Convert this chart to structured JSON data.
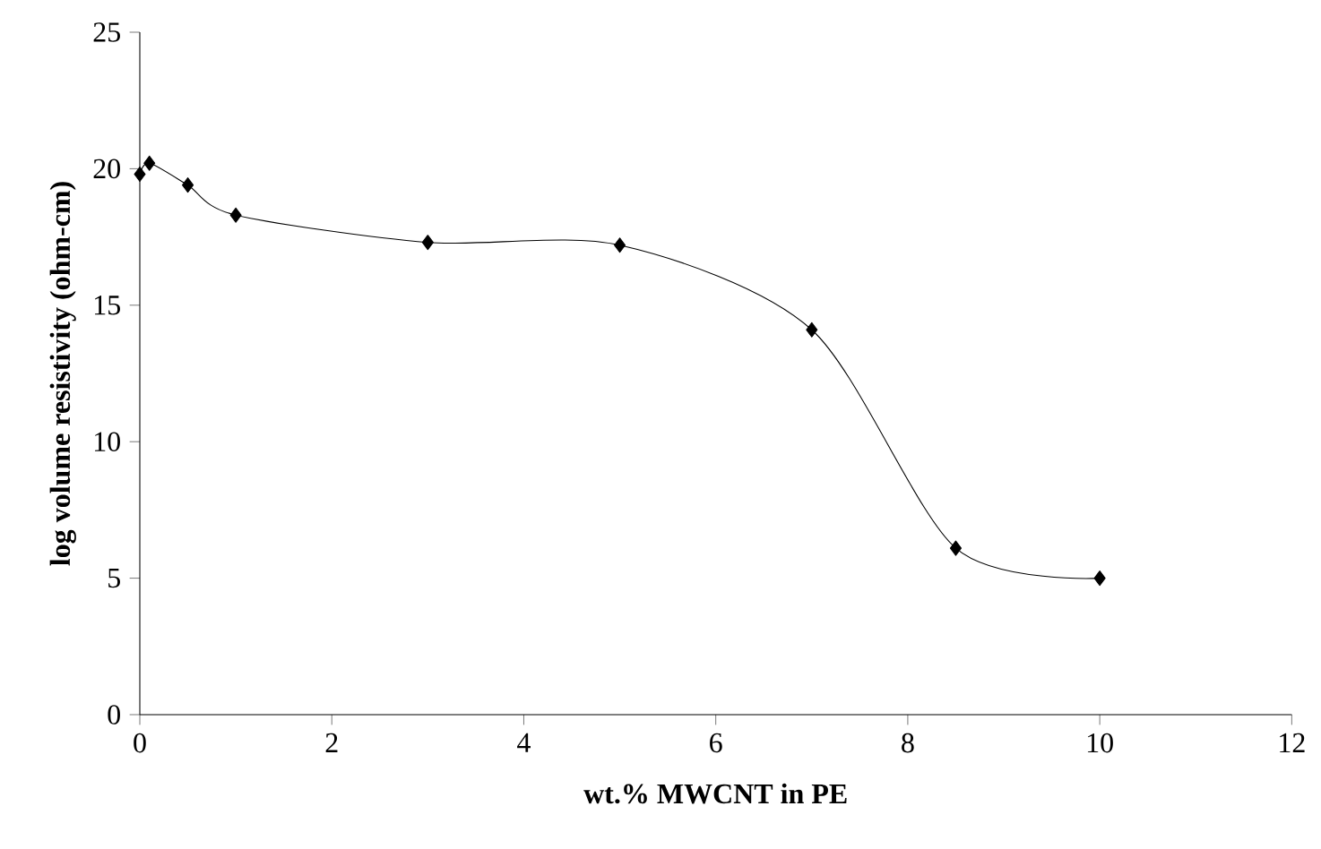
{
  "chart_data": {
    "type": "line",
    "xlabel": "wt.% MWCNT in PE",
    "ylabel": "log volume resistivity (ohm-cm)",
    "x": [
      0,
      0.1,
      0.5,
      1,
      3,
      5,
      7,
      8.5,
      10
    ],
    "series": [
      {
        "color": "#000000",
        "values": [
          19.8,
          20.2,
          19.4,
          18.3,
          17.3,
          17.2,
          14.1,
          6.1,
          5.0
        ]
      }
    ],
    "xlim": [
      0,
      12
    ],
    "xticks": [
      0,
      2,
      4,
      6,
      8,
      10,
      12
    ],
    "ylim": [
      0,
      25
    ],
    "yticks": [
      0,
      5,
      10,
      15,
      20,
      25
    ],
    "grid": false,
    "marker": "diamond",
    "line_style": "solid"
  }
}
